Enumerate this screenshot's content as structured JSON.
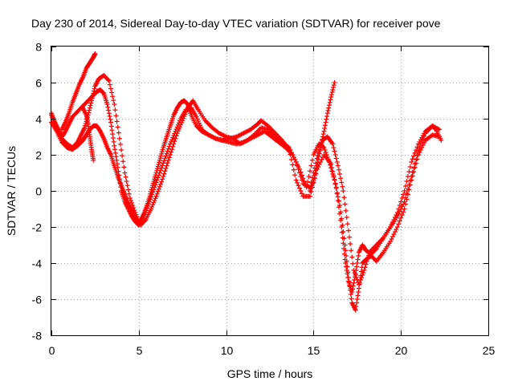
{
  "chart_data": {
    "type": "scatter",
    "title": "Day 230 of 2014, Sidereal Day-to-day VTEC variation (SDTVAR) for receiver pove",
    "xlabel": "GPS time / hours",
    "ylabel": "SDTVAR / TECUs",
    "xlim": [
      0,
      25
    ],
    "ylim": [
      -8,
      8
    ],
    "x_ticks": [
      0,
      5,
      10,
      15,
      20,
      25
    ],
    "y_ticks": [
      -8,
      -6,
      -4,
      -2,
      0,
      2,
      4,
      6,
      8
    ],
    "grid": true,
    "marker": "plus",
    "color": "#ff0000",
    "series": [
      {
        "x": [
          0.0,
          0.2,
          0.4,
          0.6,
          0.8,
          1.0,
          1.2,
          1.5,
          1.8,
          2.1,
          2.4,
          2.6,
          2.8,
          3.0,
          3.2,
          3.4,
          3.6,
          3.8,
          4.0,
          4.2,
          4.4,
          4.6,
          4.8,
          5.0,
          5.2,
          5.4,
          5.6,
          5.8,
          6.0,
          6.2,
          6.4,
          6.6,
          6.8,
          7.0,
          7.2,
          7.4,
          7.6,
          7.8,
          8.0,
          8.3,
          8.6,
          9.0,
          9.4,
          9.8,
          10.2,
          10.6,
          11.0,
          11.4,
          11.8,
          12.0,
          12.4,
          12.8,
          13.2,
          13.6,
          14.0,
          14.4,
          14.8,
          15.2,
          15.6,
          16.0,
          16.3,
          16.6,
          16.8,
          17.0,
          17.2,
          17.4,
          17.6,
          17.8,
          18.0,
          18.3,
          18.6,
          19.0,
          19.4,
          19.8,
          20.2,
          20.6,
          21.0,
          21.4,
          21.8,
          22.0,
          22.3
        ],
        "y": [
          4.3,
          3.8,
          3.4,
          3.0,
          3.3,
          3.7,
          4.1,
          4.4,
          4.7,
          5.0,
          5.3,
          5.5,
          5.6,
          5.4,
          4.8,
          3.8,
          2.5,
          1.3,
          0.0,
          -0.6,
          -1.0,
          -1.4,
          -1.7,
          -1.9,
          -1.5,
          -1.0,
          -0.4,
          0.3,
          1.0,
          1.7,
          2.4,
          3.0,
          3.6,
          4.2,
          4.6,
          4.9,
          5.0,
          4.8,
          4.2,
          3.6,
          3.3,
          3.1,
          2.9,
          2.8,
          2.9,
          3.0,
          3.2,
          3.4,
          3.7,
          3.9,
          3.6,
          3.2,
          2.8,
          2.3,
          0.6,
          -0.3,
          -0.3,
          1.2,
          2.0,
          1.5,
          0.2,
          -2.0,
          -3.8,
          -5.0,
          -5.6,
          -4.6,
          -3.4,
          -3.0,
          -3.3,
          -3.5,
          -3.2,
          -2.6,
          -2.0,
          -1.2,
          0.0,
          1.6,
          2.6,
          3.3,
          3.6,
          3.4,
          2.8
        ]
      },
      {
        "x": [
          0.0,
          0.3,
          0.6,
          0.9,
          1.2,
          1.5,
          1.8,
          2.0,
          2.2,
          2.4,
          2.6,
          2.8,
          3.0,
          3.2,
          3.4,
          3.6,
          3.8,
          4.0,
          4.2,
          4.4,
          4.6,
          4.8,
          5.0,
          5.3,
          5.6,
          5.9,
          6.2,
          6.5,
          6.8,
          7.1,
          7.4,
          7.7,
          8.0,
          8.3,
          8.6,
          9.0,
          9.4,
          9.8,
          10.2,
          10.6,
          11.0,
          11.4,
          11.8,
          12.2,
          12.6,
          13.0,
          13.4,
          13.8,
          14.2,
          14.6,
          15.0,
          15.3,
          15.6,
          15.9,
          16.2,
          16.5,
          16.8,
          17.0,
          17.2,
          17.4,
          17.6,
          17.8,
          18.0,
          18.3,
          18.6,
          19.0,
          19.4,
          19.8,
          20.2,
          20.6,
          21.0,
          21.4,
          21.8,
          22.2
        ],
        "y": [
          3.8,
          3.3,
          2.7,
          2.4,
          2.3,
          2.5,
          2.8,
          3.1,
          3.4,
          3.6,
          3.6,
          3.3,
          2.9,
          2.4,
          2.0,
          1.4,
          0.8,
          0.3,
          -0.2,
          -0.7,
          -1.1,
          -1.5,
          -1.8,
          -1.3,
          -0.6,
          0.2,
          1.0,
          1.8,
          2.6,
          3.3,
          4.0,
          4.5,
          4.6,
          4.1,
          3.4,
          3.1,
          2.9,
          2.8,
          2.7,
          2.6,
          2.7,
          2.9,
          3.1,
          3.3,
          3.0,
          2.7,
          2.4,
          2.0,
          1.2,
          0.2,
          2.0,
          2.6,
          2.4,
          1.6,
          0.6,
          -0.8,
          -3.0,
          -4.8,
          -6.2,
          -6.6,
          -5.4,
          -4.0,
          -3.8,
          -3.6,
          -3.9,
          -3.4,
          -2.8,
          -2.0,
          -1.0,
          0.6,
          2.0,
          2.8,
          3.1,
          3.0
        ]
      },
      {
        "x": [
          0.0,
          0.3,
          0.6,
          0.9,
          1.2,
          1.5,
          1.7,
          1.9,
          2.1,
          2.3,
          2.5,
          2.7,
          3.0,
          3.3,
          3.6,
          3.9,
          4.2,
          4.5,
          4.8,
          5.1,
          5.4,
          5.7,
          6.0,
          6.3,
          6.6,
          6.9,
          7.2,
          7.5,
          7.8,
          8.1,
          8.4,
          8.8,
          9.2,
          9.6,
          10.0,
          10.4,
          10.8,
          11.2,
          11.6,
          12.0,
          12.4,
          12.8,
          13.2,
          13.6,
          14.0,
          14.4,
          14.8,
          15.2,
          15.5,
          15.8,
          16.1,
          16.4,
          16.7,
          17.0,
          17.3,
          17.6,
          17.9,
          18.2,
          18.6,
          19.0,
          19.4,
          19.8,
          20.2,
          20.6,
          21.0,
          21.4,
          21.8,
          22.2
        ],
        "y": [
          4.2,
          3.5,
          2.9,
          2.6,
          2.4,
          2.7,
          3.1,
          3.5,
          4.2,
          5.0,
          5.8,
          6.2,
          6.4,
          6.1,
          4.8,
          2.9,
          1.0,
          -0.4,
          -1.2,
          -1.9,
          -1.6,
          -1.0,
          -0.3,
          0.5,
          1.4,
          2.3,
          3.2,
          3.9,
          4.6,
          5.0,
          4.5,
          3.9,
          3.5,
          3.2,
          3.0,
          2.9,
          2.6,
          2.8,
          3.1,
          3.5,
          3.4,
          3.0,
          2.7,
          2.4,
          1.6,
          0.4,
          0.2,
          1.8,
          2.8,
          3.0,
          2.6,
          1.4,
          0.0,
          -2.2,
          -4.4,
          -5.2,
          -4.4,
          -3.4,
          -3.0,
          -2.6,
          -2.0,
          -1.4,
          -0.6,
          0.8,
          2.2,
          3.2,
          3.6,
          3.4
        ]
      },
      {
        "x": [
          0.6,
          0.8,
          1.0,
          1.2,
          1.4,
          1.6,
          1.8,
          2.0,
          2.2,
          2.4,
          2.5
        ],
        "y": [
          3.4,
          3.8,
          4.3,
          4.9,
          5.4,
          5.9,
          6.3,
          6.8,
          7.1,
          7.4,
          7.6
        ]
      },
      {
        "x": [
          1.8,
          2.0,
          2.1,
          2.2,
          2.3,
          2.4
        ],
        "y": [
          4.6,
          4.2,
          3.7,
          3.0,
          2.3,
          1.7
        ]
      },
      {
        "x": [
          14.8,
          15.0,
          15.2,
          15.4,
          15.6,
          15.8,
          16.0,
          16.2
        ],
        "y": [
          0.0,
          0.6,
          1.4,
          2.4,
          3.3,
          4.3,
          5.2,
          6.0
        ]
      }
    ]
  }
}
